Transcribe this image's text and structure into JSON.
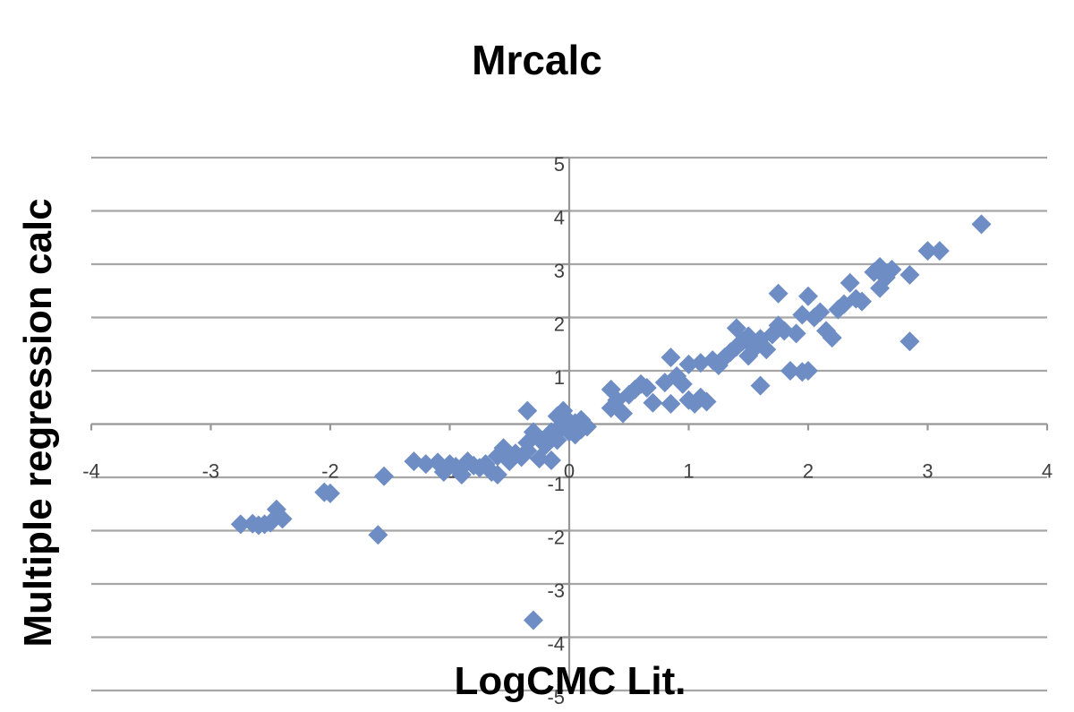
{
  "chart_data": {
    "type": "scatter",
    "title": "Mrcalc",
    "xlabel": "LogCMC  Lit.",
    "ylabel": "Multiple regression calc",
    "xlim": [
      -4,
      4
    ],
    "ylim": [
      -5,
      5
    ],
    "x_ticks": [
      -4,
      -3,
      -2,
      -1,
      0,
      1,
      2,
      3,
      4
    ],
    "y_ticks": [
      -5,
      -4,
      -3,
      -2,
      -1,
      0,
      1,
      2,
      3,
      4,
      5
    ],
    "x_tick_labels": [
      "-4",
      "-3",
      "-2",
      "-1",
      "0",
      "1",
      "2",
      "3",
      "4"
    ],
    "y_tick_labels": [
      "-5",
      "-4",
      "-3",
      "-2",
      "-1",
      "0",
      "1",
      "2",
      "3",
      "4",
      "5"
    ],
    "grid": "horizontal",
    "legend": "none",
    "marker_color": "#6e8dc4",
    "series": [
      {
        "points": [
          [
            -2.75,
            -1.88
          ],
          [
            -2.65,
            -1.87
          ],
          [
            -2.6,
            -1.9
          ],
          [
            -2.55,
            -1.88
          ],
          [
            -2.5,
            -1.85
          ],
          [
            -2.45,
            -1.6
          ],
          [
            -2.4,
            -1.78
          ],
          [
            -2.05,
            -1.28
          ],
          [
            -2.0,
            -1.3
          ],
          [
            -1.6,
            -2.08
          ],
          [
            -1.55,
            -0.98
          ],
          [
            -1.3,
            -0.7
          ],
          [
            -1.2,
            -0.75
          ],
          [
            -1.1,
            -0.72
          ],
          [
            -1.05,
            -0.9
          ],
          [
            -1.0,
            -0.75
          ],
          [
            -0.95,
            -0.8
          ],
          [
            -0.9,
            -0.95
          ],
          [
            -0.85,
            -0.7
          ],
          [
            -0.8,
            -0.78
          ],
          [
            -0.75,
            -0.82
          ],
          [
            -0.7,
            -0.75
          ],
          [
            -0.65,
            -0.9
          ],
          [
            -0.6,
            -0.95
          ],
          [
            -0.6,
            -0.6
          ],
          [
            -0.55,
            -0.45
          ],
          [
            -0.5,
            -0.7
          ],
          [
            -0.45,
            -0.55
          ],
          [
            -0.4,
            -0.62
          ],
          [
            -0.35,
            -0.5
          ],
          [
            -0.35,
            -0.35
          ],
          [
            -0.3,
            -0.15
          ],
          [
            -0.25,
            -0.28
          ],
          [
            -0.2,
            -0.4
          ],
          [
            -0.15,
            -0.15
          ],
          [
            -0.1,
            -0.3
          ],
          [
            -0.1,
            -0.1
          ],
          [
            -0.05,
            -0.05
          ],
          [
            -0.35,
            0.25
          ],
          [
            -0.1,
            0.15
          ],
          [
            -0.05,
            0.08
          ],
          [
            0.0,
            0.05
          ],
          [
            0.0,
            -0.15
          ],
          [
            0.05,
            0.02
          ],
          [
            0.05,
            -0.2
          ],
          [
            0.1,
            0.08
          ],
          [
            0.1,
            -0.1
          ],
          [
            0.15,
            -0.05
          ],
          [
            -0.05,
            0.25
          ],
          [
            -0.25,
            -0.65
          ],
          [
            -0.15,
            -0.68
          ],
          [
            -0.3,
            -3.68
          ],
          [
            0.35,
            0.65
          ],
          [
            0.35,
            0.3
          ],
          [
            0.4,
            0.45
          ],
          [
            0.45,
            0.2
          ],
          [
            0.5,
            0.55
          ],
          [
            0.55,
            0.65
          ],
          [
            0.6,
            0.75
          ],
          [
            0.65,
            0.68
          ],
          [
            0.7,
            0.4
          ],
          [
            0.8,
            0.78
          ],
          [
            0.85,
            1.25
          ],
          [
            0.85,
            0.38
          ],
          [
            0.9,
            0.9
          ],
          [
            0.95,
            0.75
          ],
          [
            1.0,
            1.12
          ],
          [
            1.0,
            0.45
          ],
          [
            1.05,
            0.38
          ],
          [
            1.1,
            1.15
          ],
          [
            1.1,
            0.5
          ],
          [
            1.15,
            0.42
          ],
          [
            1.2,
            1.2
          ],
          [
            1.25,
            1.1
          ],
          [
            1.3,
            1.25
          ],
          [
            1.35,
            1.35
          ],
          [
            1.4,
            1.45
          ],
          [
            1.4,
            1.8
          ],
          [
            1.45,
            1.55
          ],
          [
            1.5,
            1.65
          ],
          [
            1.5,
            1.28
          ],
          [
            1.55,
            1.42
          ],
          [
            1.6,
            1.6
          ],
          [
            1.6,
            0.72
          ],
          [
            1.65,
            1.4
          ],
          [
            1.7,
            1.68
          ],
          [
            1.75,
            1.85
          ],
          [
            1.75,
            2.45
          ],
          [
            1.8,
            1.75
          ],
          [
            1.85,
            1.0
          ],
          [
            1.9,
            1.7
          ],
          [
            1.95,
            0.98
          ],
          [
            1.95,
            2.05
          ],
          [
            2.0,
            2.4
          ],
          [
            2.0,
            1.0
          ],
          [
            2.05,
            2.0
          ],
          [
            2.1,
            2.1
          ],
          [
            2.15,
            1.75
          ],
          [
            2.2,
            1.62
          ],
          [
            2.25,
            2.15
          ],
          [
            2.3,
            2.25
          ],
          [
            2.35,
            2.65
          ],
          [
            2.4,
            2.35
          ],
          [
            2.45,
            2.3
          ],
          [
            2.55,
            2.85
          ],
          [
            2.6,
            2.95
          ],
          [
            2.6,
            2.55
          ],
          [
            2.65,
            2.75
          ],
          [
            2.7,
            2.9
          ],
          [
            2.85,
            2.8
          ],
          [
            2.85,
            1.55
          ],
          [
            3.0,
            3.25
          ],
          [
            3.1,
            3.25
          ],
          [
            3.45,
            3.75
          ]
        ]
      }
    ]
  }
}
